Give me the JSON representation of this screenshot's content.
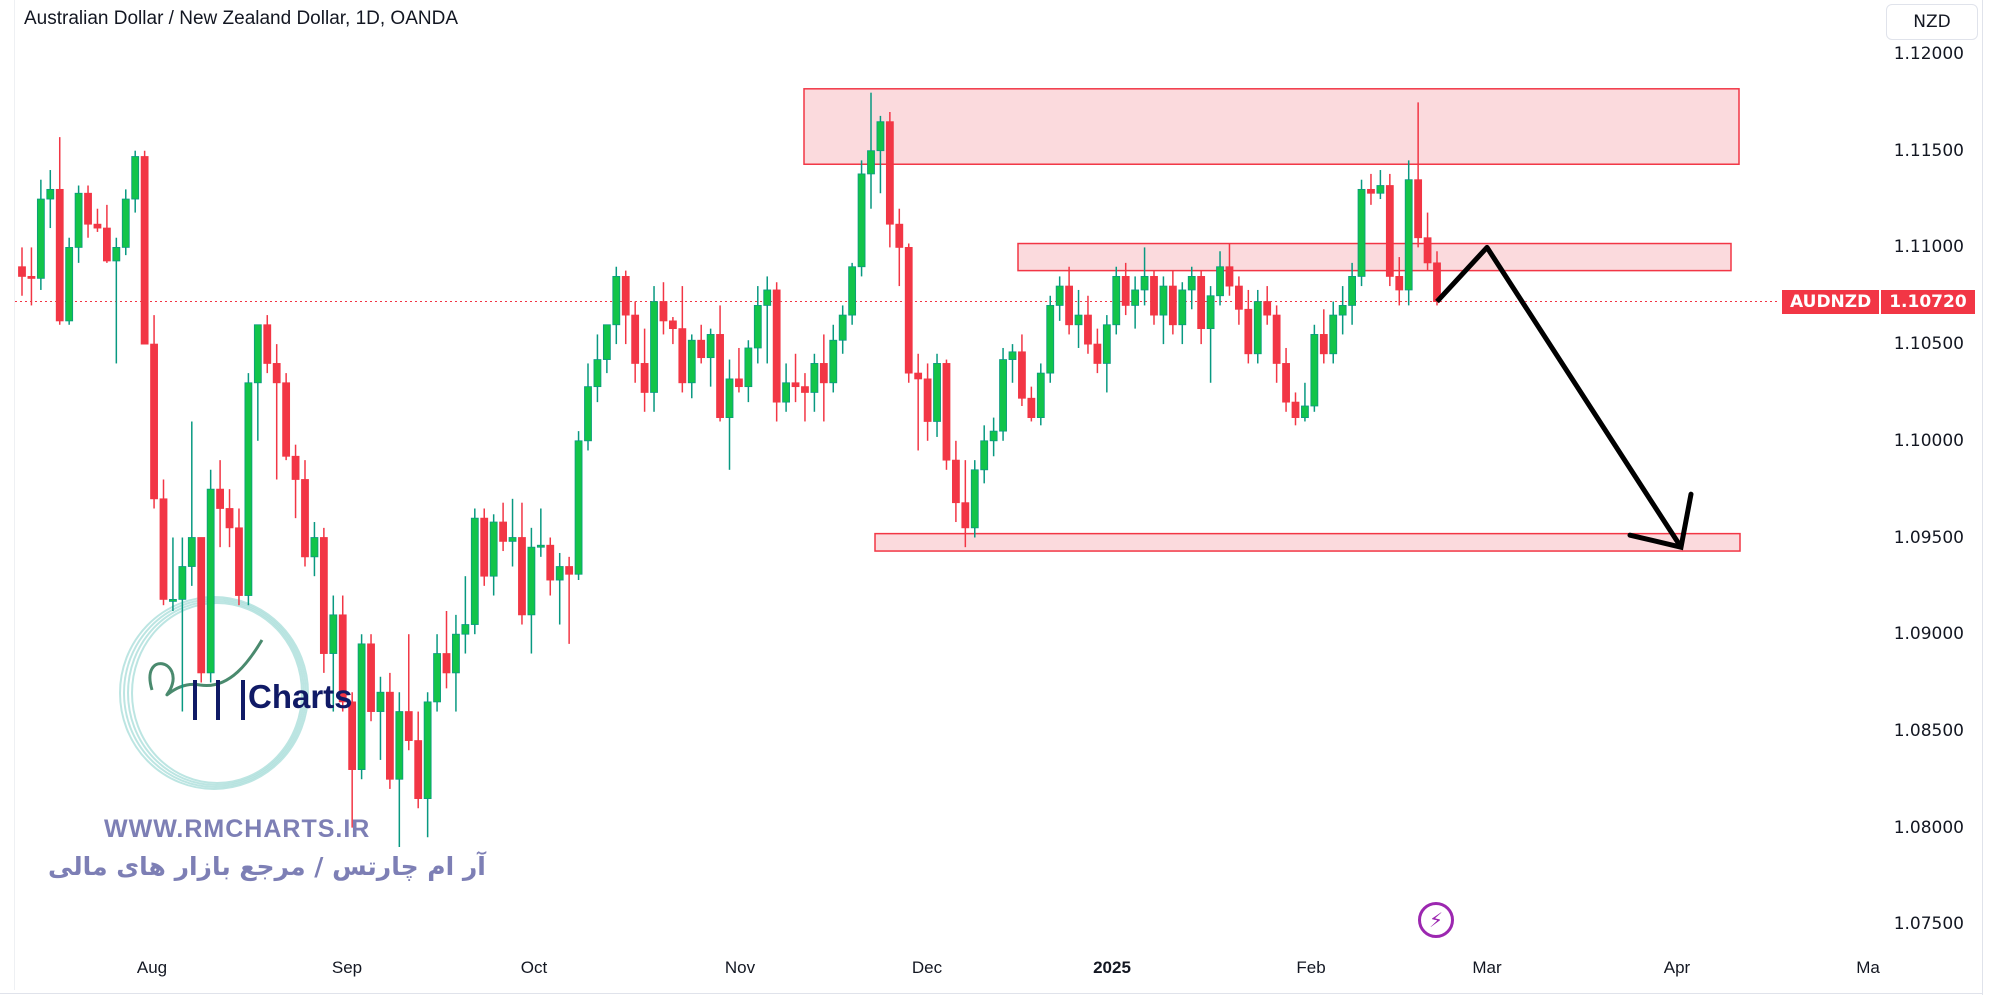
{
  "header": {
    "title": "Australian Dollar / New Zealand Dollar, 1D, OANDA",
    "currency_button": "NZD"
  },
  "price_label": {
    "symbol": "AUDNZD",
    "value": "1.10720",
    "color": "#f23645"
  },
  "watermark": {
    "logo_text": "Charts",
    "url": "WWW.RMCHARTS.IR",
    "tagline": "آر ام چارتس / مرجع بازار های مالی"
  },
  "icons": {
    "bolt": "lightning-icon"
  },
  "chart_data": {
    "type": "candlestick",
    "title": "Australian Dollar / New Zealand Dollar, 1D, OANDA",
    "ylim": [
      1.0735,
      1.1215
    ],
    "y_ticks": [
      "1.12000",
      "1.11500",
      "1.11000",
      "1.10500",
      "1.10000",
      "1.09500",
      "1.09000",
      "1.08500",
      "1.08000",
      "1.07500"
    ],
    "x_ticks": [
      "Aug",
      "Sep",
      "Oct",
      "Nov",
      "Dec",
      "2025",
      "Feb",
      "Mar",
      "Apr",
      "Ma"
    ],
    "colors": {
      "up": "#089981",
      "up_body": "#12c44a",
      "down": "#f23645",
      "zone_fill": "#f9cdd1",
      "zone_border": "#f23645"
    },
    "last_price": 1.1072,
    "candles": [
      [
        1.109,
        1.11,
        1.1075,
        1.1085
      ],
      [
        1.1085,
        1.11,
        1.107,
        1.1084
      ],
      [
        1.1084,
        1.1135,
        1.1078,
        1.1125
      ],
      [
        1.1125,
        1.114,
        1.111,
        1.113
      ],
      [
        1.113,
        1.1157,
        1.106,
        1.1062
      ],
      [
        1.1062,
        1.1105,
        1.106,
        1.11
      ],
      [
        1.11,
        1.1132,
        1.1092,
        1.1128
      ],
      [
        1.1128,
        1.1132,
        1.1105,
        1.1112
      ],
      [
        1.1112,
        1.112,
        1.1108,
        1.111
      ],
      [
        1.111,
        1.1122,
        1.1092,
        1.1093
      ],
      [
        1.1093,
        1.1105,
        1.104,
        1.11
      ],
      [
        1.11,
        1.113,
        1.1096,
        1.1125
      ],
      [
        1.1125,
        1.115,
        1.1118,
        1.1147
      ],
      [
        1.1147,
        1.115,
        1.105,
        1.105
      ],
      [
        1.105,
        1.1065,
        1.0965,
        1.097
      ],
      [
        1.097,
        1.098,
        1.0915,
        1.0918
      ],
      [
        1.0918,
        1.095,
        1.0912,
        1.0918
      ],
      [
        1.0918,
        1.095,
        1.086,
        1.0935
      ],
      [
        1.0935,
        1.101,
        1.0925,
        1.095
      ],
      [
        1.095,
        1.095,
        1.0875,
        1.088
      ],
      [
        1.088,
        1.0985,
        1.0875,
        1.0975
      ],
      [
        1.0975,
        1.099,
        1.0945,
        1.0965
      ],
      [
        1.0965,
        1.0975,
        1.0945,
        1.0955
      ],
      [
        1.0955,
        1.0965,
        1.0915,
        1.092
      ],
      [
        1.092,
        1.1035,
        1.0915,
        1.103
      ],
      [
        1.103,
        1.106,
        1.1,
        1.106
      ],
      [
        1.106,
        1.1065,
        1.1035,
        1.104
      ],
      [
        1.104,
        1.105,
        1.098,
        1.103
      ],
      [
        1.103,
        1.1035,
        1.099,
        1.0992
      ],
      [
        1.0992,
        1.0998,
        1.096,
        1.098
      ],
      [
        1.098,
        1.099,
        1.0935,
        1.094
      ],
      [
        1.094,
        1.0958,
        1.093,
        1.095
      ],
      [
        1.095,
        1.0955,
        1.088,
        1.089
      ],
      [
        1.089,
        1.092,
        1.086,
        1.091
      ],
      [
        1.091,
        1.092,
        1.086,
        1.0865
      ],
      [
        1.0865,
        1.087,
        1.08,
        1.083
      ],
      [
        1.083,
        1.09,
        1.0825,
        1.0895
      ],
      [
        1.0895,
        1.09,
        1.0855,
        1.086
      ],
      [
        1.086,
        1.0878,
        1.0835,
        1.087
      ],
      [
        1.087,
        1.088,
        1.082,
        1.0825
      ],
      [
        1.0825,
        1.087,
        1.079,
        1.086
      ],
      [
        1.086,
        1.09,
        1.084,
        1.0845
      ],
      [
        1.0845,
        1.086,
        1.081,
        1.0815
      ],
      [
        1.0815,
        1.087,
        1.0795,
        1.0865
      ],
      [
        1.0865,
        1.09,
        1.086,
        1.089
      ],
      [
        1.089,
        1.0912,
        1.0872,
        1.088
      ],
      [
        1.088,
        1.091,
        1.086,
        1.09
      ],
      [
        1.09,
        1.093,
        1.089,
        1.0905
      ],
      [
        1.0905,
        1.0965,
        1.09,
        1.096
      ],
      [
        1.096,
        1.0965,
        1.0925,
        1.093
      ],
      [
        1.093,
        1.0962,
        1.092,
        1.0958
      ],
      [
        1.0958,
        1.0968,
        1.0943,
        1.0948
      ],
      [
        1.0948,
        1.097,
        1.0935,
        1.095
      ],
      [
        1.095,
        1.0968,
        1.0905,
        1.091
      ],
      [
        1.091,
        1.0955,
        1.089,
        1.0945
      ],
      [
        1.0945,
        1.0965,
        1.094,
        1.0946
      ],
      [
        1.0946,
        1.095,
        1.092,
        1.0928
      ],
      [
        1.0928,
        1.0942,
        1.0905,
        1.0935
      ],
      [
        1.0935,
        1.094,
        1.0895,
        1.0931
      ],
      [
        1.0931,
        1.1005,
        1.0928,
        1.1
      ],
      [
        1.1,
        1.104,
        1.0995,
        1.1028
      ],
      [
        1.1028,
        1.1055,
        1.102,
        1.1042
      ],
      [
        1.1042,
        1.1058,
        1.1035,
        1.106
      ],
      [
        1.106,
        1.109,
        1.105,
        1.1085
      ],
      [
        1.1085,
        1.1088,
        1.105,
        1.1065
      ],
      [
        1.1065,
        1.1072,
        1.103,
        1.104
      ],
      [
        1.104,
        1.1058,
        1.1015,
        1.1025
      ],
      [
        1.1025,
        1.108,
        1.1015,
        1.1072
      ],
      [
        1.1072,
        1.1082,
        1.1055,
        1.1062
      ],
      [
        1.1062,
        1.1064,
        1.105,
        1.1058
      ],
      [
        1.1058,
        1.108,
        1.1025,
        1.103
      ],
      [
        1.103,
        1.1055,
        1.1022,
        1.1052
      ],
      [
        1.1052,
        1.106,
        1.104,
        1.1043
      ],
      [
        1.1043,
        1.1058,
        1.1028,
        1.1055
      ],
      [
        1.1055,
        1.107,
        1.101,
        1.1012
      ],
      [
        1.1012,
        1.1042,
        1.0985,
        1.1032
      ],
      [
        1.1032,
        1.1048,
        1.1025,
        1.1028
      ],
      [
        1.1028,
        1.1052,
        1.102,
        1.1048
      ],
      [
        1.1048,
        1.108,
        1.104,
        1.107
      ],
      [
        1.107,
        1.1085,
        1.104,
        1.1078
      ],
      [
        1.1078,
        1.1082,
        1.101,
        1.102
      ],
      [
        1.102,
        1.104,
        1.1015,
        1.103
      ],
      [
        1.103,
        1.1045,
        1.102,
        1.1028
      ],
      [
        1.1028,
        1.1035,
        1.101,
        1.1025
      ],
      [
        1.1025,
        1.1045,
        1.1015,
        1.104
      ],
      [
        1.104,
        1.1055,
        1.101,
        1.103
      ],
      [
        1.103,
        1.106,
        1.1025,
        1.1052
      ],
      [
        1.1052,
        1.107,
        1.1045,
        1.1065
      ],
      [
        1.1065,
        1.1092,
        1.106,
        1.109
      ],
      [
        1.109,
        1.1145,
        1.1085,
        1.1138
      ],
      [
        1.1138,
        1.118,
        1.112,
        1.115
      ],
      [
        1.115,
        1.1168,
        1.1128,
        1.1165
      ],
      [
        1.1165,
        1.117,
        1.11,
        1.1112
      ],
      [
        1.1112,
        1.112,
        1.108,
        1.11
      ],
      [
        1.11,
        1.1102,
        1.103,
        1.1035
      ],
      [
        1.1035,
        1.1045,
        1.0995,
        1.1032
      ],
      [
        1.1032,
        1.104,
        1.1,
        1.101
      ],
      [
        1.101,
        1.1045,
        1.1002,
        1.104
      ],
      [
        1.104,
        1.1042,
        1.0985,
        1.099
      ],
      [
        1.099,
        1.1,
        1.0958,
        1.0968
      ],
      [
        1.0968,
        1.099,
        1.0945,
        1.0955
      ],
      [
        1.0955,
        1.099,
        1.095,
        1.0985
      ],
      [
        1.0985,
        1.1008,
        1.0978,
        1.1
      ],
      [
        1.1,
        1.1012,
        1.0992,
        1.1005
      ],
      [
        1.1005,
        1.1048,
        1.1,
        1.1042
      ],
      [
        1.1042,
        1.105,
        1.103,
        1.1046
      ],
      [
        1.1046,
        1.1055,
        1.1018,
        1.1022
      ],
      [
        1.1022,
        1.1028,
        1.101,
        1.1012
      ],
      [
        1.1012,
        1.104,
        1.1008,
        1.1035
      ],
      [
        1.1035,
        1.1075,
        1.103,
        1.107
      ],
      [
        1.107,
        1.1085,
        1.1062,
        1.108
      ],
      [
        1.108,
        1.109,
        1.1055,
        1.106
      ],
      [
        1.106,
        1.1078,
        1.1048,
        1.1065
      ],
      [
        1.1065,
        1.1075,
        1.1045,
        1.105
      ],
      [
        1.105,
        1.1058,
        1.1035,
        1.104
      ],
      [
        1.104,
        1.1065,
        1.1025,
        1.106
      ],
      [
        1.106,
        1.109,
        1.1055,
        1.1085
      ],
      [
        1.1085,
        1.1092,
        1.1065,
        1.107
      ],
      [
        1.107,
        1.1085,
        1.1058,
        1.1078
      ],
      [
        1.1078,
        1.11,
        1.107,
        1.1085
      ],
      [
        1.1085,
        1.1088,
        1.106,
        1.1065
      ],
      [
        1.1065,
        1.1085,
        1.105,
        1.108
      ],
      [
        1.108,
        1.1088,
        1.1055,
        1.106
      ],
      [
        1.106,
        1.1082,
        1.105,
        1.1078
      ],
      [
        1.1078,
        1.109,
        1.1068,
        1.1085
      ],
      [
        1.1085,
        1.1088,
        1.105,
        1.1058
      ],
      [
        1.1058,
        1.108,
        1.103,
        1.1075
      ],
      [
        1.1075,
        1.1098,
        1.107,
        1.109
      ],
      [
        1.109,
        1.1102,
        1.1075,
        1.108
      ],
      [
        1.108,
        1.1085,
        1.106,
        1.1068
      ],
      [
        1.1068,
        1.1078,
        1.104,
        1.1045
      ],
      [
        1.1045,
        1.1078,
        1.104,
        1.1072
      ],
      [
        1.1072,
        1.108,
        1.106,
        1.1065
      ],
      [
        1.1065,
        1.107,
        1.103,
        1.104
      ],
      [
        1.104,
        1.1048,
        1.1015,
        1.102
      ],
      [
        1.102,
        1.1025,
        1.1008,
        1.1012
      ],
      [
        1.1012,
        1.103,
        1.101,
        1.1018
      ],
      [
        1.1018,
        1.106,
        1.1015,
        1.1055
      ],
      [
        1.1055,
        1.1068,
        1.104,
        1.1045
      ],
      [
        1.1045,
        1.1072,
        1.104,
        1.1065
      ],
      [
        1.1065,
        1.108,
        1.1055,
        1.107
      ],
      [
        1.107,
        1.1092,
        1.106,
        1.1085
      ],
      [
        1.1085,
        1.1135,
        1.108,
        1.113
      ],
      [
        1.113,
        1.1138,
        1.1122,
        1.1128
      ],
      [
        1.1128,
        1.114,
        1.1125,
        1.1132
      ],
      [
        1.1132,
        1.1138,
        1.108,
        1.1085
      ],
      [
        1.1085,
        1.1095,
        1.107,
        1.1078
      ],
      [
        1.1078,
        1.1145,
        1.107,
        1.1135
      ],
      [
        1.1135,
        1.1175,
        1.11,
        1.1105
      ],
      [
        1.1105,
        1.1118,
        1.1088,
        1.1092
      ],
      [
        1.1092,
        1.1098,
        1.107,
        1.1072
      ]
    ],
    "zones": [
      {
        "from": "Nov",
        "to": "Mar",
        "top": 1.1182,
        "bottom": 1.1143
      },
      {
        "from": "Dec",
        "to": "Mar",
        "top": 1.1102,
        "bottom": 1.1088
      },
      {
        "from": "Dec",
        "to": "Mar",
        "top": 1.0952,
        "bottom": 1.0943
      }
    ],
    "projection_arrow": [
      [
        1.1072
      ],
      [
        1.11
      ],
      [
        1.0945
      ]
    ]
  }
}
